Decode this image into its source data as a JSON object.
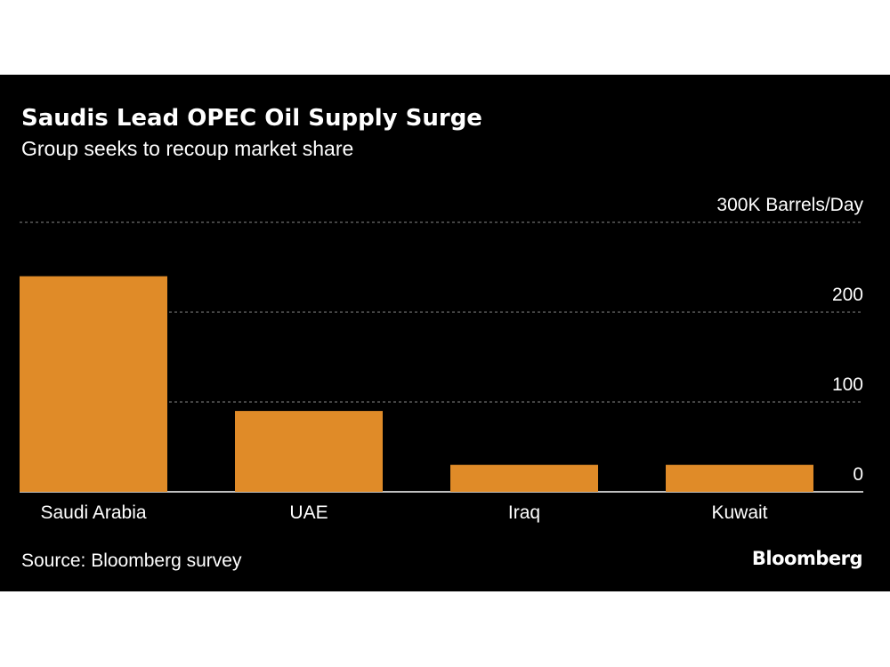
{
  "header": {
    "title": "Saudis Lead OPEC Oil Supply Surge",
    "subtitle": "Group seeks to recoup market share"
  },
  "footer": {
    "source": "Source: Bloomberg survey",
    "brand": "Bloomberg"
  },
  "colors": {
    "background": "#000000",
    "bar": "#e08b28",
    "grid": "#6e6e6e",
    "text": "#ffffff"
  },
  "chart_data": {
    "type": "bar",
    "title": "Saudis Lead OPEC Oil Supply Surge",
    "subtitle": "Group seeks to recoup market share",
    "categories": [
      "Saudi Arabia",
      "UAE",
      "Iraq",
      "Kuwait"
    ],
    "values": [
      240,
      90,
      30,
      30
    ],
    "ylim": [
      0,
      300
    ],
    "yticks": [
      0,
      100,
      200,
      300
    ],
    "ytick_labels": [
      "0",
      "100",
      "200",
      "300K Barrels/Day"
    ],
    "y_axis_position": "right",
    "grid": true,
    "legend": "none"
  }
}
